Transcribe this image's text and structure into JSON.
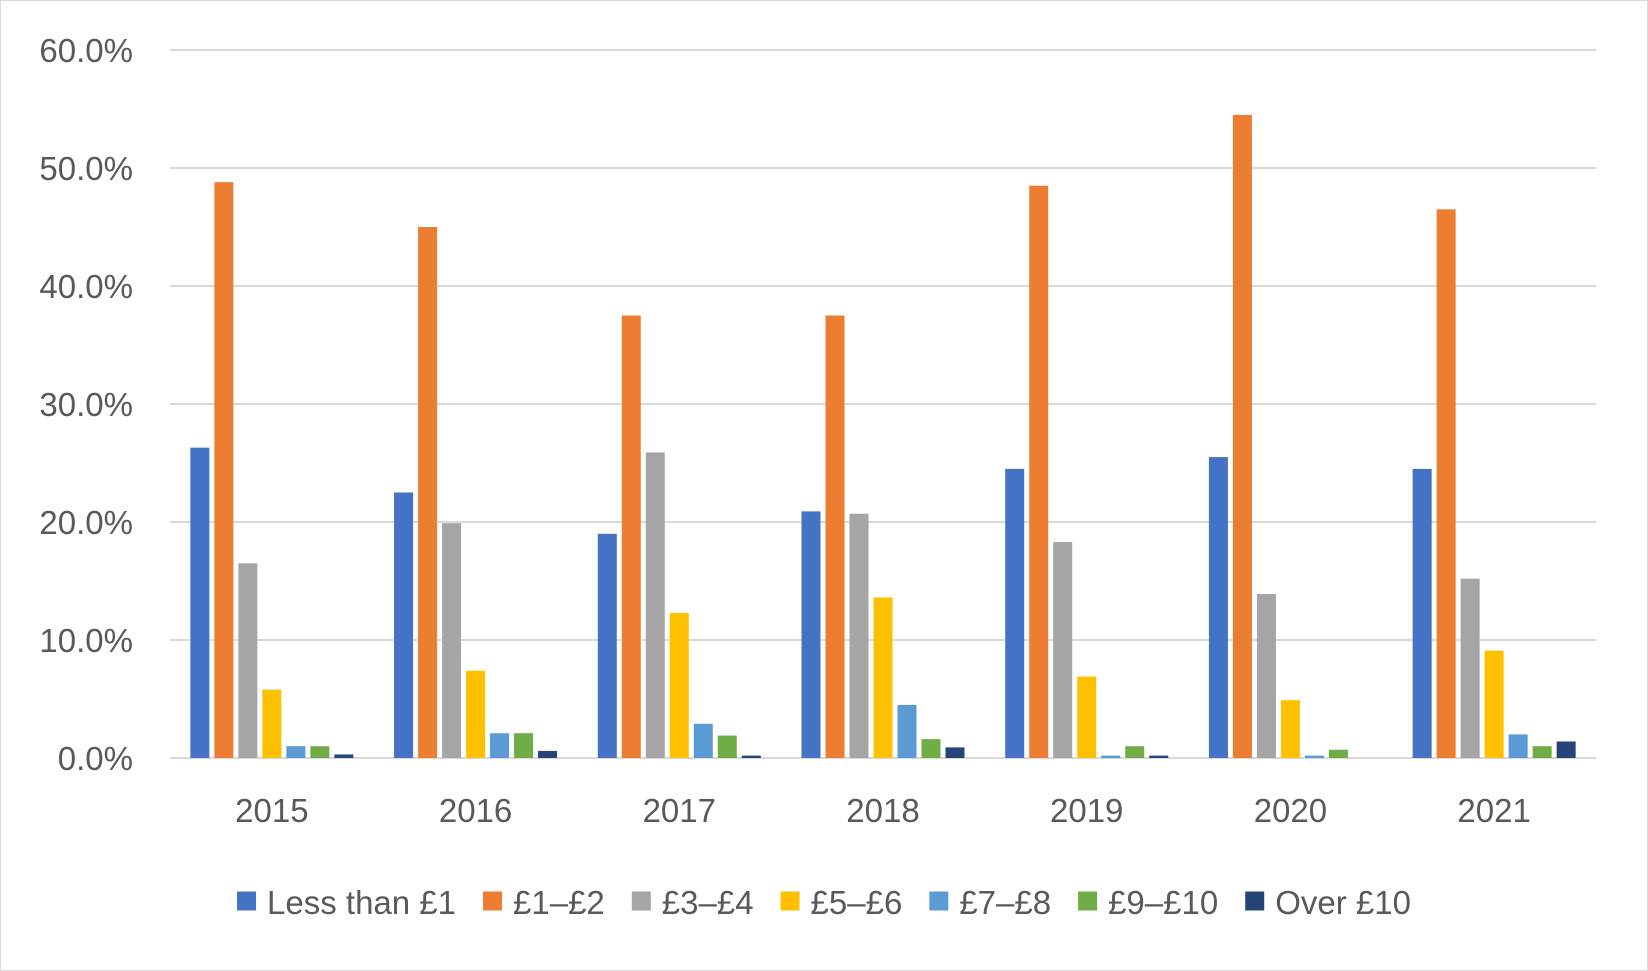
{
  "chart_data": {
    "type": "bar",
    "title": "",
    "xlabel": "",
    "ylabel": "",
    "ylim": [
      0,
      60
    ],
    "yticks": [
      "0.0%",
      "10.0%",
      "20.0%",
      "30.0%",
      "40.0%",
      "50.0%",
      "60.0%"
    ],
    "grid": true,
    "legend_position": "bottom",
    "categories": [
      "2015",
      "2016",
      "2017",
      "2018",
      "2019",
      "2020",
      "2021"
    ],
    "series": [
      {
        "name": "Less than £1",
        "color": "#4472C4",
        "values": [
          26.3,
          22.5,
          19.0,
          20.9,
          24.5,
          25.5,
          24.5
        ]
      },
      {
        "name": "£1–£2",
        "color": "#ED7D31",
        "values": [
          48.8,
          45.0,
          37.5,
          37.5,
          48.5,
          54.5,
          46.5
        ]
      },
      {
        "name": "£3–£4",
        "color": "#A5A5A5",
        "values": [
          16.5,
          19.9,
          25.9,
          20.7,
          18.3,
          13.9,
          15.2
        ]
      },
      {
        "name": "£5–£6",
        "color": "#FFC000",
        "values": [
          5.8,
          7.4,
          12.3,
          13.6,
          6.9,
          4.9,
          9.1
        ]
      },
      {
        "name": "£7–£8",
        "color": "#5B9BD5",
        "values": [
          1.0,
          2.1,
          2.9,
          4.5,
          0.2,
          0.2,
          2.0
        ]
      },
      {
        "name": "£9–£10",
        "color": "#70AD47",
        "values": [
          1.0,
          2.1,
          1.9,
          1.6,
          1.0,
          0.7,
          1.0
        ]
      },
      {
        "name": "Over £10",
        "color": "#264478",
        "values": [
          0.3,
          0.6,
          0.2,
          0.9,
          0.2,
          0.0,
          1.4
        ]
      }
    ]
  }
}
